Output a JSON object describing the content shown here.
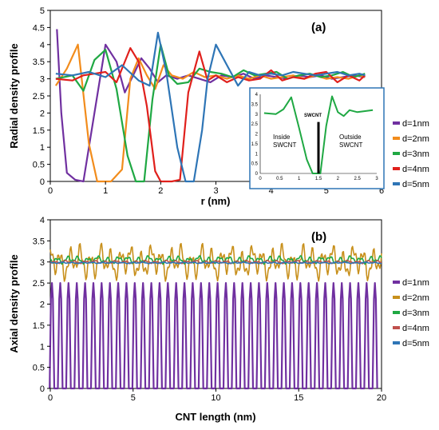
{
  "chart_data": [
    {
      "type": "line",
      "panel_label": "(a)",
      "xlabel": "r (nm)",
      "ylabel": "Radial density profile",
      "xlim": [
        0,
        6
      ],
      "ylim": [
        0,
        5
      ],
      "xticks": [
        "0",
        "1",
        "2",
        "3",
        "4",
        "5",
        "6"
      ],
      "yticks": [
        "0",
        "0.5",
        "1",
        "1.5",
        "2",
        "2.5",
        "3",
        "3.5",
        "4",
        "4.5",
        "5"
      ],
      "grid": false,
      "legend_position": "right",
      "series": [
        {
          "name": "d=1nm",
          "color": "#7030a0",
          "x": [
            0.12,
            0.2,
            0.3,
            0.45,
            0.6,
            0.8,
            1.0,
            1.2,
            1.35,
            1.5,
            1.65,
            1.8,
            1.95,
            2.1,
            2.3,
            2.5,
            2.7,
            2.9,
            3.1,
            3.3,
            3.5,
            3.7,
            3.9,
            4.1,
            4.3,
            4.5,
            4.7,
            4.9,
            5.1,
            5.3,
            5.5,
            5.7
          ],
          "y": [
            4.45,
            2.0,
            0.25,
            0.05,
            0.0,
            2.0,
            4.0,
            3.5,
            2.6,
            3.1,
            3.6,
            3.3,
            2.9,
            3.1,
            3.0,
            3.1,
            3.0,
            2.9,
            3.1,
            3.05,
            3.15,
            3.0,
            3.1,
            3.05,
            3.0,
            3.1,
            3.05,
            3.1,
            3.0,
            3.05,
            3.1,
            3.05
          ]
        },
        {
          "name": "d=2nm",
          "color": "#f28c1c",
          "x": [
            0.1,
            0.3,
            0.5,
            0.7,
            0.85,
            1.0,
            1.1,
            1.3,
            1.45,
            1.6,
            1.75,
            1.9,
            2.05,
            2.2,
            2.4,
            2.6,
            2.8,
            3.0,
            3.2,
            3.4,
            3.6,
            3.8,
            4.0,
            4.2,
            4.4,
            4.6,
            4.8,
            5.0,
            5.2,
            5.4,
            5.6,
            5.7
          ],
          "y": [
            2.8,
            3.3,
            4.0,
            1.1,
            0.0,
            0.0,
            0.0,
            0.35,
            3.0,
            3.6,
            3.1,
            2.7,
            3.4,
            3.1,
            3.0,
            3.2,
            3.05,
            3.1,
            3.0,
            3.1,
            3.0,
            3.1,
            3.0,
            3.05,
            3.1,
            3.0,
            3.1,
            3.0,
            3.05,
            3.0,
            3.1,
            3.05
          ]
        },
        {
          "name": "d=3nm",
          "color": "#1fa843",
          "x": [
            0.1,
            0.4,
            0.6,
            0.8,
            1.0,
            1.2,
            1.4,
            1.55,
            1.7,
            1.85,
            2.0,
            2.15,
            2.3,
            2.5,
            2.7,
            2.9,
            3.1,
            3.3,
            3.5,
            3.7,
            3.9,
            4.1,
            4.3,
            4.5,
            4.7,
            4.9,
            5.1,
            5.3,
            5.5,
            5.7
          ],
          "y": [
            3.0,
            3.1,
            2.65,
            3.55,
            3.85,
            2.7,
            0.75,
            0.0,
            0.0,
            2.4,
            4.0,
            3.1,
            2.85,
            2.9,
            3.3,
            3.2,
            3.15,
            3.05,
            3.25,
            3.1,
            3.15,
            3.2,
            3.0,
            3.1,
            3.15,
            3.05,
            3.1,
            3.2,
            3.05,
            3.15
          ]
        },
        {
          "name": "d=4nm",
          "color": "#e0201c",
          "x": [
            0.1,
            0.4,
            0.6,
            0.8,
            1.0,
            1.2,
            1.45,
            1.6,
            1.75,
            1.9,
            2.0,
            2.2,
            2.35,
            2.5,
            2.7,
            2.85,
            3.0,
            3.2,
            3.4,
            3.6,
            3.8,
            4.0,
            4.2,
            4.4,
            4.6,
            4.8,
            5.0,
            5.2,
            5.4,
            5.6,
            5.7
          ],
          "y": [
            3.0,
            2.95,
            3.1,
            3.15,
            3.2,
            2.9,
            3.9,
            3.5,
            2.2,
            0.3,
            0.0,
            0.0,
            0.05,
            2.6,
            3.8,
            2.95,
            3.1,
            2.9,
            3.05,
            2.95,
            3.0,
            3.25,
            2.95,
            3.05,
            3.0,
            3.15,
            3.2,
            2.9,
            3.1,
            2.95,
            3.1
          ]
        },
        {
          "name": "d=5nm",
          "color": "#2e75b6",
          "x": [
            0.1,
            0.4,
            0.7,
            1.0,
            1.3,
            1.6,
            1.8,
            1.95,
            2.1,
            2.3,
            2.45,
            2.6,
            2.75,
            2.85,
            3.0,
            3.2,
            3.4,
            3.6,
            3.8,
            4.0,
            4.2,
            4.4,
            4.6,
            4.8,
            5.0,
            5.2,
            5.4,
            5.6,
            5.7
          ],
          "y": [
            3.15,
            3.1,
            3.2,
            3.05,
            3.4,
            2.95,
            2.8,
            4.35,
            3.2,
            1.0,
            0.0,
            0.0,
            1.5,
            3.0,
            4.0,
            3.4,
            2.8,
            3.2,
            3.1,
            3.15,
            3.1,
            3.2,
            3.15,
            3.1,
            3.15,
            3.2,
            3.1,
            3.15,
            3.1
          ]
        }
      ],
      "inset": {
        "xlim": [
          0,
          3
        ],
        "ylim": [
          0,
          4
        ],
        "xticks": [
          "0",
          "0.5",
          "1",
          "1.5",
          "2",
          "2.5",
          "3"
        ],
        "yticks": [
          "0",
          "0.5",
          "1",
          "1.5",
          "2",
          "2.5",
          "3",
          "3.5",
          "4"
        ],
        "label_left": [
          "Inside",
          "SWCNT"
        ],
        "label_right": [
          "Outside",
          "SWCNT"
        ],
        "wall_label": "SWCNT",
        "wall_x": 1.5,
        "wall_top": 2.6,
        "series": {
          "color": "#1fa843",
          "x": [
            0.1,
            0.4,
            0.6,
            0.8,
            1.0,
            1.2,
            1.35,
            1.45,
            1.55,
            1.7,
            1.85,
            2.0,
            2.15,
            2.3,
            2.5,
            2.7,
            2.9
          ],
          "y": [
            3.05,
            3.0,
            3.25,
            3.85,
            2.3,
            0.7,
            0.0,
            0.0,
            0.0,
            2.4,
            3.9,
            3.1,
            2.9,
            3.2,
            3.1,
            3.15,
            3.2
          ]
        }
      }
    },
    {
      "type": "line",
      "panel_label": "(b)",
      "xlabel": "CNT length (nm)",
      "ylabel": "Axial density profile",
      "xlim": [
        0,
        20
      ],
      "ylim": [
        0,
        4
      ],
      "xticks": [
        "0",
        "5",
        "10",
        "15",
        "20"
      ],
      "yticks": [
        "0",
        "0.5",
        "1",
        "1.5",
        "2",
        "2.5",
        "3",
        "3.5",
        "4"
      ],
      "grid": false,
      "legend_position": "right",
      "series": [
        {
          "name": "d=1nm",
          "color": "#7030a0",
          "peak_height": 2.5,
          "peak_spacing": 0.5,
          "peak_count": 40,
          "first_peak": 0.1
        },
        {
          "name": "d=2nm",
          "color": "#c8901c",
          "mean": 3.0,
          "amplitude": 0.45
        },
        {
          "name": "d=3nm",
          "color": "#1fa843",
          "mean": 3.05,
          "amplitude": 0.1
        },
        {
          "name": "d=4nm",
          "color": "#c0504d",
          "mean": 3.0,
          "amplitude": 0.04
        },
        {
          "name": "d=5nm",
          "color": "#2e75b6",
          "mean": 2.98,
          "amplitude": 0.02
        }
      ]
    }
  ]
}
